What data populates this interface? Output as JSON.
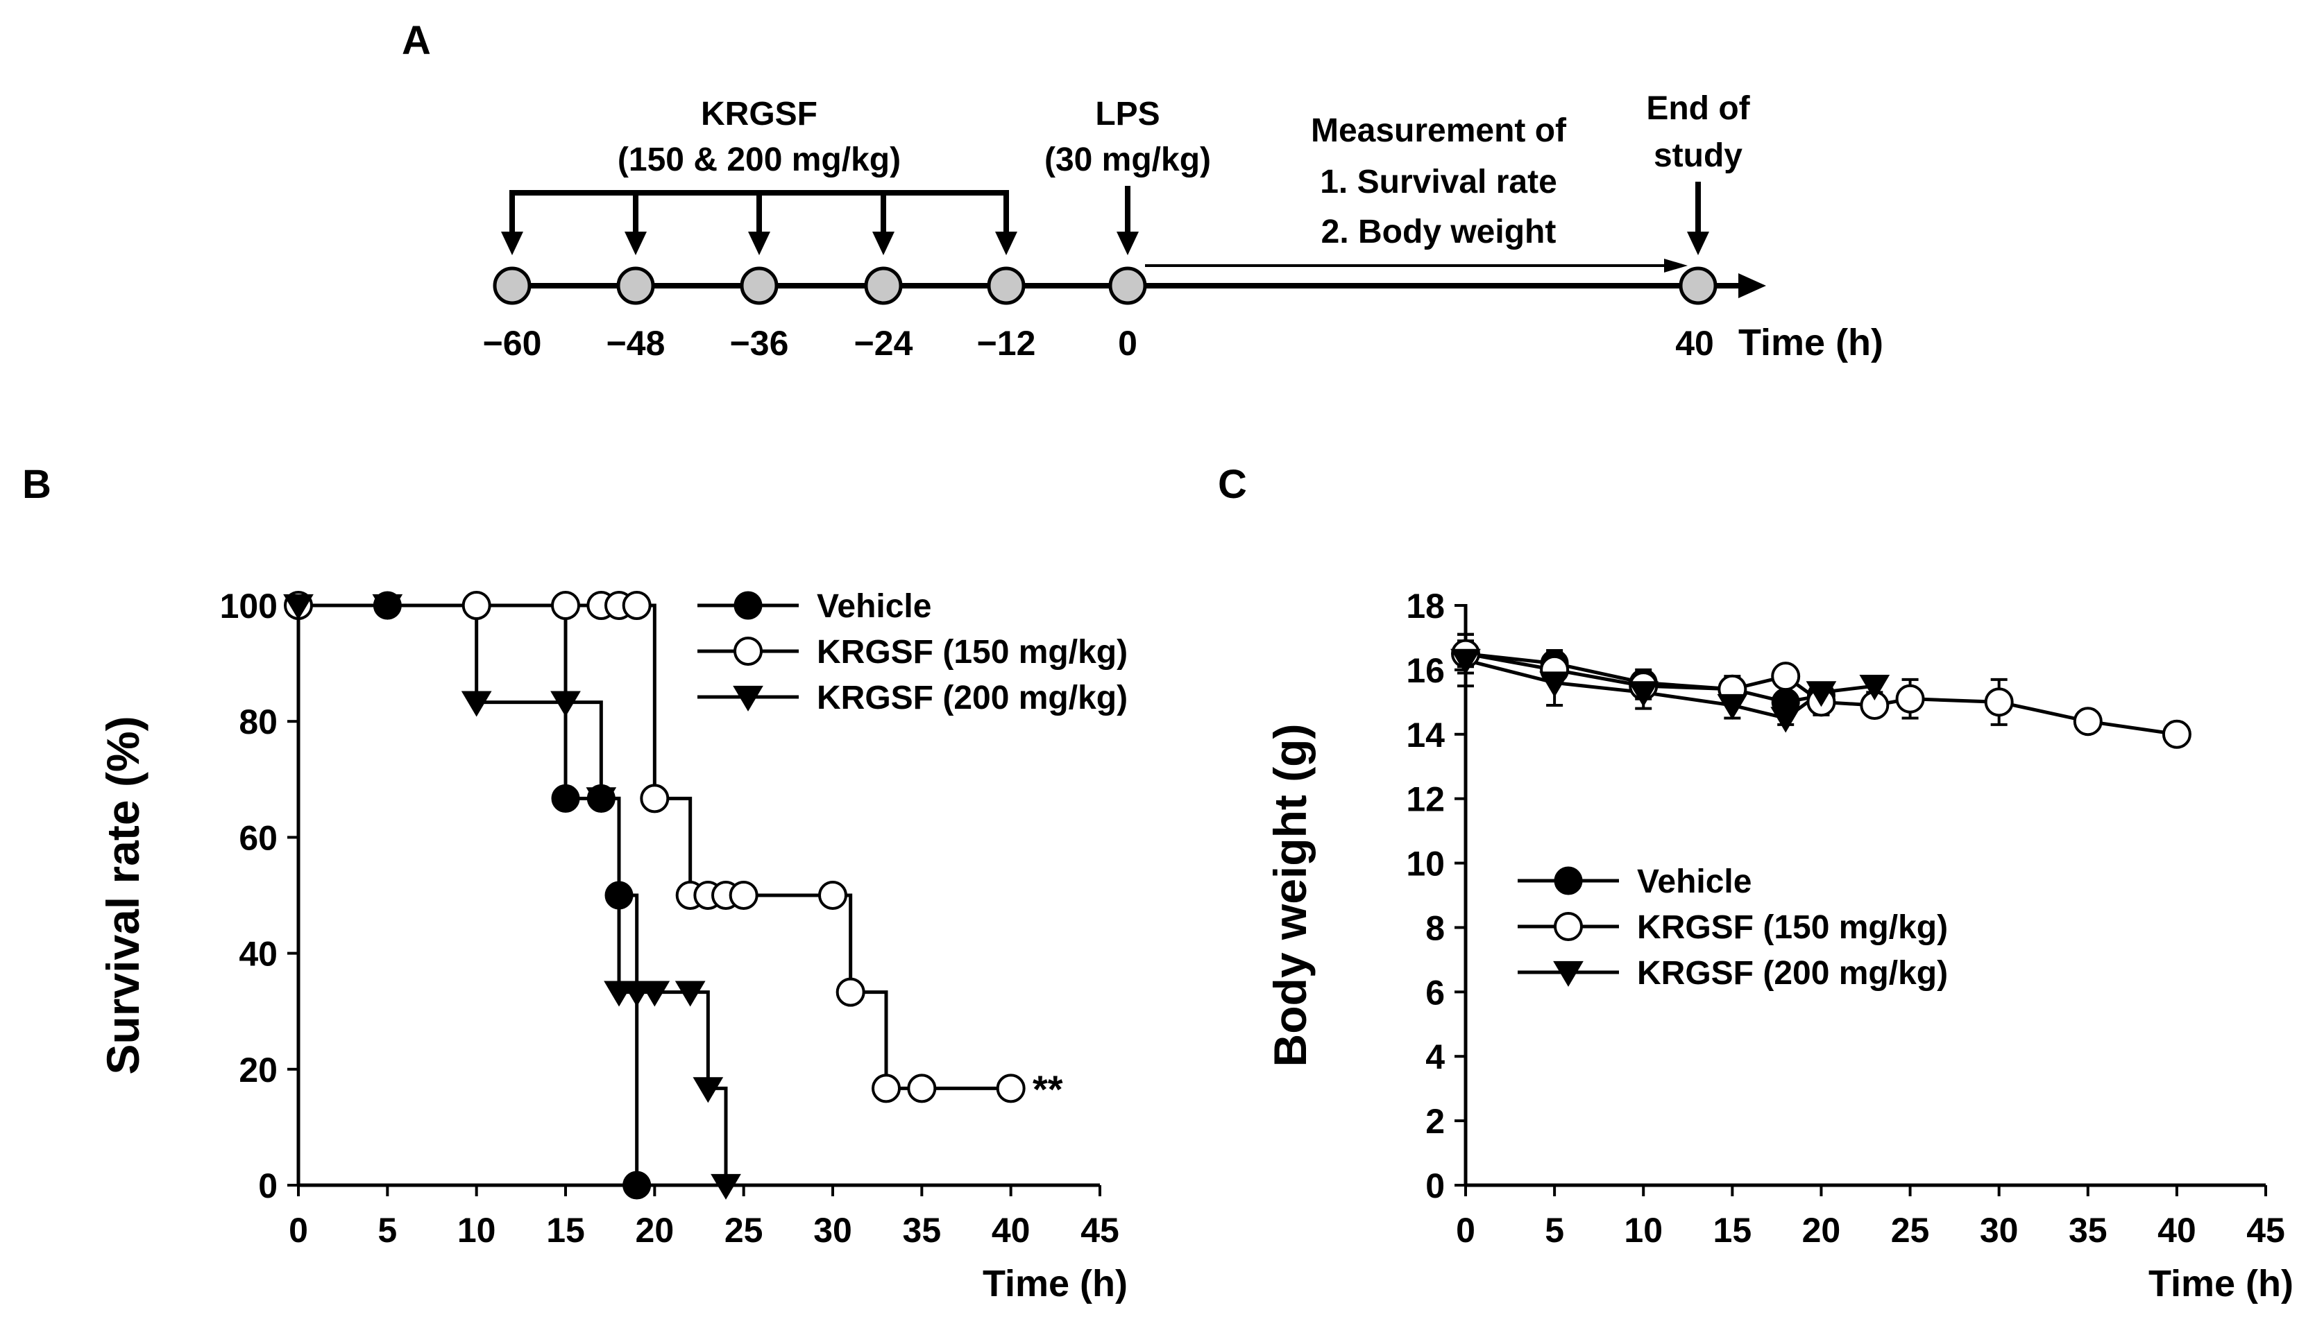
{
  "panel_a": {
    "label": "A",
    "krgsf_title": "KRGSF",
    "krgsf_dose": "(150 & 200 mg/kg)",
    "lps_title": "LPS",
    "lps_dose": "(30 mg/kg)",
    "measurement_title": "Measurement of",
    "measurement_item1": "1. Survival rate",
    "measurement_item2": "2. Body weight",
    "end_line1": "End of",
    "end_line2": "study",
    "time_points": [
      "−60",
      "−48",
      "−36",
      "−24",
      "−12",
      "0",
      "40"
    ],
    "axis_label": "Time (h)"
  },
  "panel_b": {
    "label": "B",
    "significance": "**"
  },
  "panel_c": {
    "label": "C"
  },
  "chart_data": [
    {
      "panel": "B",
      "type": "line",
      "step": true,
      "ylabel": "Survival rate (%)",
      "xlabel": "Time (h)",
      "xlim": [
        0,
        45
      ],
      "ylim": [
        0,
        100
      ],
      "xticks": [
        0,
        5,
        10,
        15,
        20,
        25,
        30,
        35,
        40,
        45
      ],
      "yticks": [
        0,
        20,
        40,
        60,
        80,
        100
      ],
      "legend_position": "top-right",
      "series": [
        {
          "name": "Vehicle",
          "marker": "filled-circle",
          "x": [
            0,
            5,
            15,
            17,
            18,
            19
          ],
          "y": [
            100,
            100,
            66.7,
            66.7,
            50,
            0
          ]
        },
        {
          "name": "KRGSF (150 mg/kg)",
          "marker": "open-circle",
          "x": [
            0,
            10,
            15,
            17,
            18,
            19,
            20,
            22,
            23,
            24,
            25,
            30,
            31,
            33,
            35,
            40
          ],
          "y": [
            100,
            100,
            100,
            100,
            100,
            100,
            66.7,
            50,
            50,
            50,
            50,
            50,
            33.3,
            16.7,
            16.7,
            16.7
          ]
        },
        {
          "name": "KRGSF (200 mg/kg)",
          "marker": "filled-triangle-down",
          "x": [
            0,
            5,
            10,
            15,
            17,
            18,
            19,
            20,
            22,
            23,
            24
          ],
          "y": [
            100,
            100,
            83.3,
            83.3,
            66.7,
            33.3,
            33.3,
            33.3,
            33.3,
            16.7,
            0
          ]
        }
      ]
    },
    {
      "panel": "C",
      "type": "line",
      "ylabel": "Body weight (g)",
      "xlabel": "Time (h)",
      "xlim": [
        0,
        45
      ],
      "ylim": [
        0,
        18
      ],
      "xticks": [
        0,
        5,
        10,
        15,
        20,
        25,
        30,
        35,
        40,
        45
      ],
      "yticks": [
        0,
        2,
        4,
        6,
        8,
        10,
        12,
        14,
        16,
        18
      ],
      "legend_position": "center-left",
      "series": [
        {
          "name": "Vehicle",
          "marker": "filled-circle",
          "x": [
            0,
            5,
            10,
            15,
            18,
            20
          ],
          "y": [
            16.5,
            16.2,
            15.6,
            15.4,
            15.0,
            15.2
          ],
          "err": [
            0.6,
            0.4,
            0.4,
            0.4,
            0.2,
            0.4
          ]
        },
        {
          "name": "KRGSF (150 mg/kg)",
          "marker": "open-circle",
          "x": [
            0,
            5,
            10,
            15,
            18,
            20,
            23,
            25,
            30,
            35,
            40
          ],
          "y": [
            16.5,
            16.0,
            15.5,
            15.4,
            15.8,
            15.0,
            14.9,
            15.1,
            15.0,
            14.4,
            14.0
          ],
          "err": [
            0.4,
            0.3,
            0.4,
            0.3,
            0.2,
            0.4,
            0.3,
            0.6,
            0.7,
            0.1,
            0.1
          ]
        },
        {
          "name": "KRGSF (200 mg/kg)",
          "marker": "filled-triangle-down",
          "x": [
            0,
            5,
            10,
            15,
            18,
            20,
            23
          ],
          "y": [
            16.3,
            15.6,
            15.3,
            14.9,
            14.5,
            15.3,
            15.5
          ],
          "err": [
            0.8,
            0.7,
            0.5,
            0.4,
            0.2,
            0.3,
            0.2
          ]
        }
      ]
    }
  ]
}
